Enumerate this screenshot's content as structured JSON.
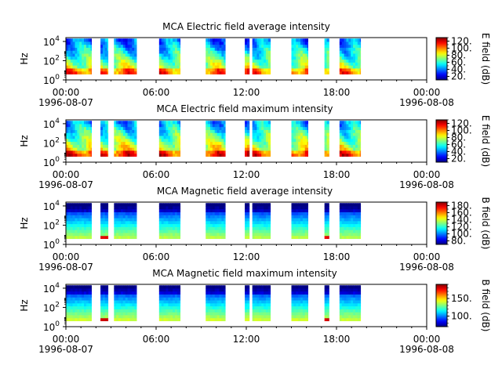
{
  "chart_data": [
    {
      "type": "heatmap",
      "title": "MCA  Electric field average intensity",
      "ylabel": "Hz",
      "colorbar_label": "E field (dB)",
      "colorbar_ticks": [
        "20.",
        "40.",
        "60.",
        "80.",
        "100.",
        "120."
      ],
      "colorbar_range": [
        10,
        130
      ],
      "field": "E",
      "stat": "avg",
      "xlim": [
        "1996-08-07 00:00",
        "1996-08-08 00:00"
      ],
      "x_ticks": [
        "00:00\n1996-08-07",
        "06:00",
        "12:00",
        "18:00",
        "00:00\n1996-08-08"
      ],
      "y_ticks": [
        "10^0",
        "10^2",
        "10^4"
      ],
      "ylim_log10": [
        0,
        4.4
      ],
      "data_intervals_hours": [
        [
          0.0,
          1.7
        ],
        [
          2.3,
          2.8
        ],
        [
          3.2,
          4.7
        ],
        [
          6.2,
          7.6
        ],
        [
          9.3,
          10.6
        ],
        [
          11.9,
          12.2
        ],
        [
          12.4,
          13.6
        ],
        [
          15.0,
          16.1
        ],
        [
          17.2,
          17.5
        ],
        [
          18.2,
          19.6
        ]
      ]
    },
    {
      "type": "heatmap",
      "title": "MCA  Electric field maximum intensity",
      "ylabel": "Hz",
      "colorbar_label": "E field (dB)",
      "colorbar_ticks": [
        "20.",
        "40.",
        "60.",
        "80.",
        "100.",
        "120."
      ],
      "colorbar_range": [
        10,
        130
      ],
      "field": "E",
      "stat": "max",
      "xlim": [
        "1996-08-07 00:00",
        "1996-08-08 00:00"
      ],
      "x_ticks": [
        "00:00\n1996-08-07",
        "06:00",
        "12:00",
        "18:00",
        "00:00\n1996-08-08"
      ],
      "y_ticks": [
        "10^0",
        "10^2",
        "10^4"
      ],
      "ylim_log10": [
        0,
        4.4
      ],
      "data_intervals_hours": [
        [
          0.0,
          1.7
        ],
        [
          2.3,
          2.8
        ],
        [
          3.2,
          4.7
        ],
        [
          6.2,
          7.6
        ],
        [
          9.3,
          10.6
        ],
        [
          11.9,
          12.2
        ],
        [
          12.4,
          13.6
        ],
        [
          15.0,
          16.1
        ],
        [
          17.2,
          17.5
        ],
        [
          18.2,
          19.6
        ]
      ]
    },
    {
      "type": "heatmap",
      "title": "MCA  Magnetic field average intensity",
      "ylabel": "Hz",
      "colorbar_label": "B field (dB)",
      "colorbar_ticks": [
        "80.",
        "100.",
        "120.",
        "140.",
        "160.",
        "180."
      ],
      "colorbar_range": [
        70,
        190
      ],
      "field": "B",
      "stat": "avg",
      "xlim": [
        "1996-08-07 00:00",
        "1996-08-08 00:00"
      ],
      "x_ticks": [
        "00:00\n1996-08-07",
        "06:00",
        "12:00",
        "18:00",
        "00:00\n1996-08-08"
      ],
      "y_ticks": [
        "10^0",
        "10^2",
        "10^4"
      ],
      "ylim_log10": [
        0,
        4.4
      ],
      "data_intervals_hours": [
        [
          0.0,
          1.7
        ],
        [
          2.3,
          2.8
        ],
        [
          3.2,
          4.7
        ],
        [
          6.2,
          7.6
        ],
        [
          9.3,
          10.6
        ],
        [
          11.9,
          12.2
        ],
        [
          12.4,
          13.6
        ],
        [
          15.0,
          16.1
        ],
        [
          17.2,
          17.5
        ],
        [
          18.2,
          19.6
        ]
      ]
    },
    {
      "type": "heatmap",
      "title": "MCA  Magnetic field maximum intensity",
      "ylabel": "Hz",
      "colorbar_label": "B field (dB)",
      "colorbar_ticks": [
        "100.",
        "150."
      ],
      "colorbar_range": [
        70,
        190
      ],
      "field": "B",
      "stat": "max",
      "xlim": [
        "1996-08-07 00:00",
        "1996-08-08 00:00"
      ],
      "x_ticks": [
        "00:00\n1996-08-07",
        "06:00",
        "12:00",
        "18:00",
        "00:00\n1996-08-08"
      ],
      "y_ticks": [
        "10^0",
        "10^2",
        "10^4"
      ],
      "ylim_log10": [
        0,
        4.4
      ],
      "data_intervals_hours": [
        [
          0.0,
          1.7
        ],
        [
          2.3,
          2.8
        ],
        [
          3.2,
          4.7
        ],
        [
          6.2,
          7.6
        ],
        [
          9.3,
          10.6
        ],
        [
          11.9,
          12.2
        ],
        [
          12.4,
          13.6
        ],
        [
          15.0,
          16.1
        ],
        [
          17.2,
          17.5
        ],
        [
          18.2,
          19.6
        ]
      ]
    }
  ]
}
